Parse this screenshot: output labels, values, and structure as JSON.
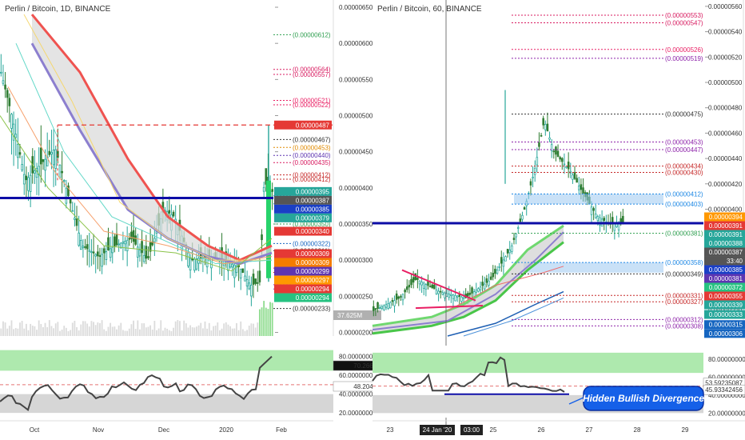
{
  "colors": {
    "candle_up": "#26a69a",
    "candle_dn": "#2e7d32",
    "ma_red": "#ef5350",
    "ma_purple": "#8c7fcf",
    "support": "#0d0da6",
    "rsi_band": "#8be08b",
    "rsi_low": "#cccccc",
    "divergence_box": "#1560e8"
  },
  "chart_data": [
    {
      "type": "candlestick",
      "title": "Perlin / Bitcoin, 1D, BINANCE",
      "y_ticks": [
        "0.00000650",
        "0.00000600",
        "0.00000550",
        "0.00000500",
        "0.00000450",
        "0.00000400",
        "0.00000350",
        "0.00000300",
        "0.00000250",
        "0.00000200"
      ],
      "ylim": [
        1.95e-06,
        6.6e-06
      ],
      "x_ticks": [
        "Oct",
        "Nov",
        "Dec",
        "2020",
        "Feb"
      ],
      "levels": [
        {
          "label": "(0.00000612)",
          "value": 6.12e-06,
          "color": "#2e9e4f"
        },
        {
          "label": "(0.00000564)",
          "value": 5.64e-06,
          "color": "#d81b60"
        },
        {
          "label": "(0.00000557)",
          "value": 5.57e-06,
          "color": "#d81b60"
        },
        {
          "label": "(0.00000521)",
          "value": 5.21e-06,
          "color": "#e91e63"
        },
        {
          "label": "(0.00000522)",
          "value": 5.15e-06,
          "color": "#e91e63"
        },
        {
          "label": "(0.00000467)",
          "value": 4.67e-06,
          "color": "#333333"
        },
        {
          "label": "(0.00000453)",
          "value": 4.56e-06,
          "color": "#e08a00"
        },
        {
          "label": "(0.00000440)",
          "value": 4.45e-06,
          "color": "#5e35b1"
        },
        {
          "label": "(0.00000435)",
          "value": 4.35e-06,
          "color": "#d81b60"
        },
        {
          "label": "(0.00000412)",
          "value": 4.18e-06,
          "color": "#c62828"
        },
        {
          "label": "(0.00000412)",
          "value": 4.12e-06,
          "color": "#c62828"
        },
        {
          "label": "(0.00000389)",
          "value": 3.89e-06,
          "color": "#1e88e5"
        },
        {
          "label": "(0.00000378)",
          "value": 3.78e-06,
          "color": "#1e88e5"
        },
        {
          "label": "(0.00000350)",
          "value": 3.5e-06,
          "color": "#2e9e4f"
        },
        {
          "label": "(0.00000322)",
          "value": 3.23e-06,
          "color": "#1565c0"
        },
        {
          "label": "(0.00000311)",
          "value": 3.13e-06,
          "color": "#333333"
        },
        {
          "label": "(0.00000288)",
          "value": 2.89e-06,
          "color": "#c62828"
        },
        {
          "label": "(0.00000285)",
          "value": 2.83e-06,
          "color": "#c62828"
        },
        {
          "label": "(0.00000266)",
          "value": 2.66e-06,
          "color": "#8e24aa"
        },
        {
          "label": "(0.00000260)",
          "value": 2.6e-06,
          "color": "#8e24aa"
        },
        {
          "label": "(0.00000233)",
          "value": 2.33e-06,
          "color": "#333333"
        }
      ],
      "price_tags": [
        {
          "label": "0.00000487",
          "value": 4.87e-06,
          "color": "#e53935"
        },
        {
          "label": "0.00000395",
          "value": 3.95e-06,
          "color": "#26a69a"
        },
        {
          "label": "0.00000387",
          "value": 3.87e-06,
          "color": "#555555"
        },
        {
          "label": "0.00000385",
          "value": 3.85e-06,
          "color": "#1a3fc6"
        },
        {
          "label": "0.00000379",
          "value": 3.79e-06,
          "color": "#26a69a"
        },
        {
          "label": "0.00000340",
          "value": 3.4e-06,
          "color": "#e53935"
        },
        {
          "label": "0.00000309",
          "value": 3.09e-06,
          "color": "#e53935"
        },
        {
          "label": "0.00000309",
          "value": 3.09e-06,
          "color": "#f57c00"
        },
        {
          "label": "0.00000299",
          "value": 2.99e-06,
          "color": "#5e35b1"
        },
        {
          "label": "0.00000297",
          "value": 2.97e-06,
          "color": "#ff9800"
        },
        {
          "label": "0.00000294",
          "value": 2.94e-06,
          "color": "#e53935"
        },
        {
          "label": "0.00000294",
          "value": 2.94e-06,
          "color": "#26c281"
        }
      ],
      "volume_tag": "37.625M",
      "support_line": 3.86e-06,
      "resistance_line": 4.87e-06,
      "rsi": {
        "ticks": [
          "80.00000000",
          "60.00000000",
          "40.00000000",
          "20.00000000"
        ],
        "ylim": [
          15,
          95
        ],
        "tags": [
          {
            "label": "70.26676746",
            "value": 70.27,
            "color": "#111111"
          },
          {
            "label": "48.20446841",
            "value": 48.2,
            "color": "#ffffff"
          }
        ]
      }
    },
    {
      "type": "candlestick",
      "title": "Perlin / Bitcoin, 60, BINANCE",
      "y_ticks": [
        "0.00000560",
        "0.00000540",
        "0.00000520",
        "0.00000500",
        "0.00000480",
        "0.00000460",
        "0.00000440",
        "0.00000420",
        "0.00000400",
        "0.00000380",
        "0.00000360",
        "0.00000340",
        "0.00000320"
      ],
      "ylim": [
        3e-06,
        5.65e-06
      ],
      "x_ticks": [
        "23",
        "24 Jan '20",
        "03:00",
        "25",
        "26",
        "27",
        "28",
        "29"
      ],
      "levels": [
        {
          "label": "(0.00000553)",
          "value": 5.53e-06,
          "color": "#d81b60"
        },
        {
          "label": "(0.00000547)",
          "value": 5.47e-06,
          "color": "#d81b60"
        },
        {
          "label": "(0.00000526)",
          "value": 5.26e-06,
          "color": "#e91e63"
        },
        {
          "label": "(0.00000519)",
          "value": 5.19e-06,
          "color": "#8e24aa"
        },
        {
          "label": "(0.00000475)",
          "value": 4.75e-06,
          "color": "#333333"
        },
        {
          "label": "(0.00000453)",
          "value": 4.53e-06,
          "color": "#8e24aa"
        },
        {
          "label": "(0.00000447)",
          "value": 4.47e-06,
          "color": "#8e24aa"
        },
        {
          "label": "(0.00000434)",
          "value": 4.34e-06,
          "color": "#c62828"
        },
        {
          "label": "(0.00000430)",
          "value": 4.29e-06,
          "color": "#c62828"
        },
        {
          "label": "(0.00000412)",
          "value": 4.12e-06,
          "color": "#1e88e5"
        },
        {
          "label": "(0.00000403)",
          "value": 4.04e-06,
          "color": "#1e88e5"
        },
        {
          "label": "(0.00000381)",
          "value": 3.81e-06,
          "color": "#2e9e4f"
        },
        {
          "label": "(0.00000358)",
          "value": 3.58e-06,
          "color": "#1e88e5"
        },
        {
          "label": "(0.00000349)",
          "value": 3.49e-06,
          "color": "#333333"
        },
        {
          "label": "(0.00000331)",
          "value": 3.32e-06,
          "color": "#c62828"
        },
        {
          "label": "(0.00000327)",
          "value": 3.27e-06,
          "color": "#c62828"
        },
        {
          "label": "(0.00000312)",
          "value": 3.13e-06,
          "color": "#8e24aa"
        },
        {
          "label": "(0.00000308)",
          "value": 3.08e-06,
          "color": "#8e24aa"
        },
        {
          "label": "(0.00000287)",
          "value": 2.87e-06,
          "color": "#333333"
        }
      ],
      "price_tags": [
        {
          "label": "0.00000394",
          "value": 3.94e-06,
          "color": "#ff9800"
        },
        {
          "label": "0.00000391",
          "value": 3.91e-06,
          "color": "#e53935"
        },
        {
          "label": "0.00000391",
          "value": 3.86e-06,
          "color": "#26a69a"
        },
        {
          "label": "0.00000388",
          "value": 3.8e-06,
          "color": "#26a69a"
        },
        {
          "label": "0.00000387",
          "value": 3.73e-06,
          "color": "#555555"
        },
        {
          "label": "33:40",
          "value": 3.66e-06,
          "color": "#555555"
        },
        {
          "label": "0.00000385",
          "value": 3.56e-06,
          "color": "#1a3fc6"
        },
        {
          "label": "0.00000381",
          "value": 3.48e-06,
          "color": "#5e35b1"
        },
        {
          "label": "0.00000372",
          "value": 3.4e-06,
          "color": "#26c281"
        },
        {
          "label": "0.00000355",
          "value": 3.32e-06,
          "color": "#e53935"
        },
        {
          "label": "0.00000339",
          "value": 3.25e-06,
          "color": "#26a69a"
        },
        {
          "label": "0.00000333",
          "value": 3.17e-06,
          "color": "#26a69a"
        },
        {
          "label": "0.00000315",
          "value": 3.09e-06,
          "color": "#1565c0"
        },
        {
          "label": "0.00000306",
          "value": 3.02e-06,
          "color": "#1565c0"
        }
      ],
      "support_line": 3.89e-06,
      "rsi": {
        "ticks": [
          "80.00000000",
          "60.00000000",
          "40.00000000",
          "20.00000000"
        ],
        "ylim": [
          15,
          95
        ],
        "tags": [
          {
            "label": "53.59235087",
            "value": 53.59,
            "color": "#ffffff"
          },
          {
            "label": "45.93342456",
            "value": 45.93,
            "color": "#ffffff"
          }
        ]
      },
      "annotation": "Hidden Bullish Divergence"
    }
  ]
}
